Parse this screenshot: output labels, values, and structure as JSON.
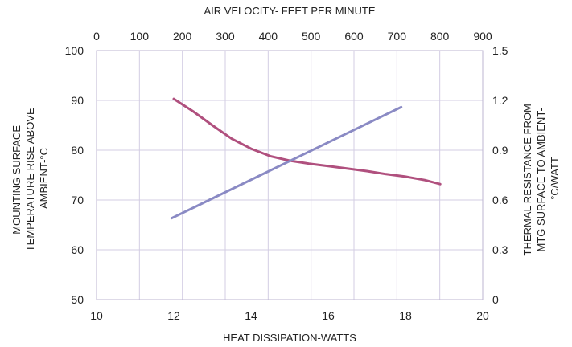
{
  "chart_data": {
    "type": "line",
    "grid": true,
    "legend": "none",
    "x_bottom": {
      "label": "HEAT DISSIPATION-WATTS",
      "lim": [
        10,
        20
      ],
      "ticks": [
        10,
        12,
        14,
        16,
        18,
        20
      ]
    },
    "x_top": {
      "label": "AIR VELOCITY- FEET PER MINUTE",
      "lim": [
        0,
        900
      ],
      "ticks": [
        0,
        100,
        200,
        300,
        400,
        500,
        600,
        700,
        800,
        900
      ]
    },
    "y_left": {
      "label_lines": [
        "MOUNTING SURFACE",
        "TEMPERATURE RISE ABOVE",
        "AMBIENT-°C"
      ],
      "lim": [
        50,
        100
      ],
      "ticks": [
        50,
        60,
        70,
        80,
        90,
        100
      ]
    },
    "y_right": {
      "label_lines": [
        "THERMAL RESISTANCE FROM",
        "MTG SURFACE TO AMBIENT-",
        "°C/WATT"
      ],
      "lim": [
        0,
        1.5
      ],
      "ticks": [
        "0",
        "0.3",
        "0.6",
        "0.9",
        "1.2",
        "1.5"
      ]
    },
    "series": [
      {
        "id": "temperature-rise",
        "x_axis": "bottom",
        "y_axis": "left",
        "color": "#b0507e",
        "x": [
          12.0,
          12.5,
          13.0,
          13.5,
          14.0,
          14.5,
          15.0,
          15.5,
          16.0,
          16.5,
          17.0,
          17.5,
          18.0,
          18.5,
          18.9
        ],
        "y": [
          90.3,
          87.8,
          85.0,
          82.3,
          80.3,
          78.8,
          77.9,
          77.3,
          76.8,
          76.3,
          75.8,
          75.2,
          74.7,
          74.0,
          73.2
        ]
      },
      {
        "id": "thermal-resistance",
        "x_axis": "top",
        "y_axis": "right",
        "color": "#8a8ac4",
        "x": [
          175,
          710
        ],
        "y": [
          0.49,
          1.16
        ]
      }
    ]
  }
}
